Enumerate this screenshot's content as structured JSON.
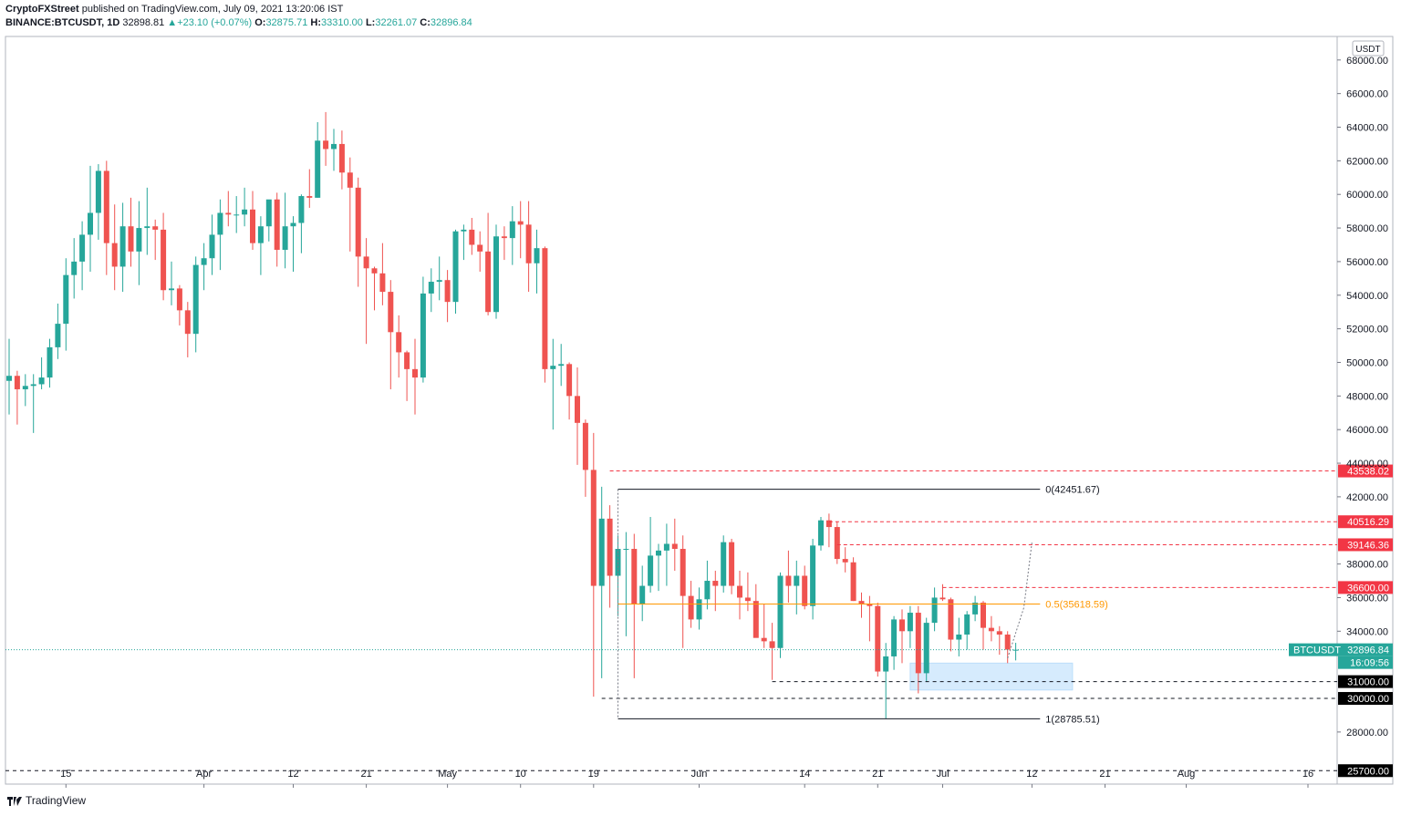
{
  "header": {
    "publisher": "CryptoFXStreet",
    "published_text": "published on TradingView.com, July 09, 2021 13:20:06 IST",
    "symbol": "BINANCE:BTCUSDT, 1D",
    "last": "32898.81",
    "change_arrow": "▲",
    "change": "+23.10 (+0.07%)",
    "o_label": "O:",
    "o_value": "32875.71",
    "h_label": "H:",
    "h_value": "33310.00",
    "l_label": "L:",
    "l_value": "32261.07",
    "c_label": "C:",
    "c_value": "32896.84"
  },
  "footer": {
    "brand": "TradingView"
  },
  "colors": {
    "up": "#26a69a",
    "down": "#ef5350",
    "level": "#f23645",
    "fib": "#ff9800",
    "zone": "#bbdefb"
  },
  "chart_data": {
    "type": "candlestick",
    "currency_label": "USDT",
    "ylim": [
      24900,
      69400
    ],
    "y_ticks": [
      28000,
      34000,
      36000,
      38000,
      42000,
      44000,
      46000,
      48000,
      50000,
      52000,
      54000,
      56000,
      58000,
      60000,
      62000,
      64000,
      66000,
      68000
    ],
    "y_tick_labels": [
      "28000.00",
      "34000.00",
      "36000.00",
      "38000.00",
      "42000.00",
      "44000.00",
      "46000.00",
      "48000.00",
      "50000.00",
      "52000.00",
      "54000.00",
      "56000.00",
      "58000.00",
      "60000.00",
      "62000.00",
      "64000.00",
      "66000.00",
      "68000.00"
    ],
    "x_ticks": [
      {
        "idx": 7,
        "label": "15"
      },
      {
        "idx": 24,
        "label": "Apr"
      },
      {
        "idx": 35,
        "label": "12"
      },
      {
        "idx": 44,
        "label": "21"
      },
      {
        "idx": 54,
        "label": "May"
      },
      {
        "idx": 63,
        "label": "10"
      },
      {
        "idx": 72,
        "label": "19"
      },
      {
        "idx": 85,
        "label": "Jun"
      },
      {
        "idx": 98,
        "label": "14"
      },
      {
        "idx": 107,
        "label": "21"
      },
      {
        "idx": 115,
        "label": "Jul"
      },
      {
        "idx": 126,
        "label": "12"
      },
      {
        "idx": 135,
        "label": "21"
      },
      {
        "idx": 145,
        "label": "Aug"
      },
      {
        "idx": 160,
        "label": "16"
      }
    ],
    "candles": [
      [
        48900,
        51400,
        46900,
        49200
      ],
      [
        49200,
        49500,
        46300,
        48400
      ],
      [
        48400,
        49300,
        47400,
        48600
      ],
      [
        48600,
        49300,
        45800,
        48700
      ],
      [
        48700,
        50300,
        48400,
        49100
      ],
      [
        49100,
        51400,
        48500,
        50900
      ],
      [
        50900,
        53500,
        50200,
        52300
      ],
      [
        52300,
        56200,
        50700,
        55200
      ],
      [
        55200,
        57400,
        53800,
        56000
      ],
      [
        56000,
        58400,
        54300,
        57600
      ],
      [
        57600,
        61700,
        55400,
        58900
      ],
      [
        58900,
        61800,
        57300,
        61400
      ],
      [
        61400,
        62000,
        55200,
        57100
      ],
      [
        57100,
        59400,
        54300,
        55700
      ],
      [
        55700,
        59500,
        54200,
        58100
      ],
      [
        58100,
        59800,
        55700,
        56600
      ],
      [
        56600,
        59600,
        54600,
        58000
      ],
      [
        58000,
        60400,
        56400,
        58100
      ],
      [
        58100,
        58500,
        56100,
        57900
      ],
      [
        57900,
        58900,
        53700,
        54300
      ],
      [
        54300,
        56000,
        53400,
        54400
      ],
      [
        54400,
        54600,
        52200,
        53100
      ],
      [
        53100,
        53600,
        50300,
        51700
      ],
      [
        51700,
        56300,
        50600,
        55800
      ],
      [
        55800,
        57100,
        54300,
        56200
      ],
      [
        56200,
        58800,
        55200,
        57600
      ],
      [
        57600,
        59700,
        55500,
        58900
      ],
      [
        58900,
        60200,
        58100,
        58800
      ],
      [
        58800,
        59900,
        57700,
        58800
      ],
      [
        58800,
        60400,
        58100,
        59100
      ],
      [
        59100,
        60200,
        56700,
        57100
      ],
      [
        57100,
        58700,
        55200,
        58100
      ],
      [
        58100,
        59600,
        57200,
        59700
      ],
      [
        59700,
        60100,
        55700,
        56700
      ],
      [
        56700,
        60100,
        55600,
        58100
      ],
      [
        58100,
        58700,
        55400,
        58300
      ],
      [
        58300,
        60000,
        56500,
        59900
      ],
      [
        59900,
        61500,
        59200,
        59800
      ],
      [
        59800,
        64300,
        59800,
        63200
      ],
      [
        63200,
        64900,
        61700,
        62700
      ],
      [
        62700,
        63900,
        61400,
        63000
      ],
      [
        63000,
        63800,
        60300,
        61300
      ],
      [
        61300,
        62200,
        56600,
        60400
      ],
      [
        60400,
        61000,
        54500,
        56300
      ],
      [
        56300,
        57400,
        51100,
        55600
      ],
      [
        55600,
        55700,
        53100,
        55300
      ],
      [
        55300,
        57100,
        53400,
        54200
      ],
      [
        54200,
        54900,
        48400,
        51800
      ],
      [
        51800,
        52800,
        49100,
        50600
      ],
      [
        50600,
        50700,
        47700,
        49600
      ],
      [
        49600,
        51400,
        46900,
        49100
      ],
      [
        49100,
        55100,
        48800,
        54100
      ],
      [
        54100,
        55600,
        53000,
        54800
      ],
      [
        54800,
        56300,
        53700,
        54900
      ],
      [
        54900,
        55500,
        52400,
        53600
      ],
      [
        53600,
        57900,
        52900,
        57800
      ],
      [
        57800,
        58200,
        56100,
        57900
      ],
      [
        57900,
        58600,
        56400,
        57000
      ],
      [
        57000,
        57800,
        55400,
        56600
      ],
      [
        56600,
        58900,
        52800,
        53000
      ],
      [
        53000,
        58200,
        52600,
        57500
      ],
      [
        57500,
        58100,
        56100,
        57400
      ],
      [
        57400,
        59300,
        55800,
        58400
      ],
      [
        58400,
        59600,
        56200,
        58200
      ],
      [
        58200,
        59600,
        54200,
        55900
      ],
      [
        55900,
        57900,
        54100,
        56800
      ],
      [
        56800,
        56900,
        48800,
        49600
      ],
      [
        49600,
        51400,
        46000,
        49800
      ],
      [
        49800,
        51100,
        48600,
        49900
      ],
      [
        49900,
        50000,
        46600,
        48000
      ],
      [
        48000,
        49700,
        43900,
        46400
      ],
      [
        46400,
        46600,
        42000,
        43600
      ],
      [
        43600,
        45800,
        30100,
        36700
      ],
      [
        36700,
        42600,
        31200,
        40700
      ],
      [
        40700,
        41500,
        35400,
        37300
      ],
      [
        37300,
        39700,
        34900,
        38900
      ],
      [
        38900,
        39900,
        33700,
        38900
      ],
      [
        38900,
        39800,
        31200,
        35600
      ],
      [
        35600,
        37900,
        34600,
        36700
      ],
      [
        36700,
        40800,
        36300,
        38500
      ],
      [
        38500,
        39200,
        36400,
        38800
      ],
      [
        38800,
        40400,
        36700,
        39200
      ],
      [
        39200,
        40700,
        37600,
        38900
      ],
      [
        38900,
        39700,
        33000,
        36100
      ],
      [
        36100,
        37000,
        34200,
        34700
      ],
      [
        34700,
        36600,
        34100,
        35900
      ],
      [
        35900,
        38200,
        35300,
        37000
      ],
      [
        37000,
        37600,
        35200,
        36700
      ],
      [
        36700,
        39700,
        36300,
        39300
      ],
      [
        39300,
        39500,
        36200,
        36700
      ],
      [
        36700,
        37600,
        34700,
        36000
      ],
      [
        36000,
        37500,
        35200,
        35800
      ],
      [
        35800,
        36800,
        33700,
        33600
      ],
      [
        33600,
        35600,
        33000,
        33400
      ],
      [
        33400,
        34500,
        31100,
        33000
      ],
      [
        33000,
        37500,
        32400,
        37300
      ],
      [
        37300,
        38800,
        35700,
        36700
      ],
      [
        36700,
        38200,
        35000,
        37300
      ],
      [
        37300,
        37900,
        35300,
        35500
      ],
      [
        35500,
        39500,
        34700,
        39100
      ],
      [
        39100,
        40800,
        38800,
        40600
      ],
      [
        40600,
        41000,
        39000,
        40200
      ],
      [
        40200,
        40500,
        38000,
        38300
      ],
      [
        38300,
        39000,
        37500,
        38100
      ],
      [
        38100,
        38400,
        35800,
        35800
      ],
      [
        35800,
        36300,
        34800,
        35600
      ],
      [
        35600,
        36100,
        33400,
        35500
      ],
      [
        35500,
        35700,
        31300,
        31600
      ],
      [
        31600,
        33300,
        28800,
        32500
      ],
      [
        32500,
        34900,
        31700,
        34700
      ],
      [
        34700,
        35300,
        32100,
        34000
      ],
      [
        34000,
        35500,
        33000,
        35100
      ],
      [
        35100,
        35500,
        30300,
        31500
      ],
      [
        31500,
        34800,
        31000,
        34500
      ],
      [
        34500,
        36600,
        34000,
        36000
      ],
      [
        36000,
        36800,
        35800,
        35900
      ],
      [
        35900,
        36000,
        32800,
        33500
      ],
      [
        33500,
        34800,
        32500,
        33800
      ],
      [
        33800,
        35200,
        32900,
        35000
      ],
      [
        35000,
        36100,
        34600,
        35700
      ],
      [
        35700,
        35800,
        32900,
        34200
      ],
      [
        34200,
        34900,
        33400,
        34000
      ],
      [
        34000,
        34300,
        32600,
        33800
      ],
      [
        33800,
        34000,
        32100,
        32900
      ],
      [
        32875.71,
        33310,
        32261.07,
        32896.84
      ]
    ],
    "levels": [
      {
        "name": "resistance-43538",
        "value": 43538.02,
        "label": "43538.02",
        "style": "dashed-red"
      },
      {
        "name": "resistance-40516",
        "value": 40516.29,
        "label": "40516.29",
        "style": "dashed-red"
      },
      {
        "name": "resistance-39146",
        "value": 39146.36,
        "label": "39146.36",
        "style": "dashed-red"
      },
      {
        "name": "resistance-36600",
        "value": 36600,
        "label": "36600.00",
        "style": "dashed-red"
      },
      {
        "name": "support-31000",
        "value": 31000,
        "label": "31000.00",
        "style": "dashed-black"
      },
      {
        "name": "support-30000",
        "value": 30000,
        "label": "30000.00",
        "style": "dashed-black"
      },
      {
        "name": "support-25700",
        "value": 25700,
        "label": "25700.00",
        "style": "dashed-black"
      }
    ],
    "fib": [
      {
        "ratio": "0",
        "value": 42451.67,
        "label": "0(42451.67)",
        "color": "#131722"
      },
      {
        "ratio": "0.5",
        "value": 35618.59,
        "label": "0.5(35618.59)",
        "color": "#ff9800"
      },
      {
        "ratio": "1",
        "value": 28785.51,
        "label": "1(28785.51)",
        "color": "#131722"
      }
    ],
    "current_price": {
      "symbol": "BTCUSDT",
      "value": 32896.84,
      "label": "32896.84",
      "countdown": "16:09:56"
    },
    "demand_zone": {
      "low": 30500,
      "high": 32100,
      "from_idx": 111,
      "to_idx": 131
    },
    "projection": [
      [
        123,
        32400
      ],
      [
        125,
        35400
      ],
      [
        126,
        39300
      ]
    ]
  }
}
